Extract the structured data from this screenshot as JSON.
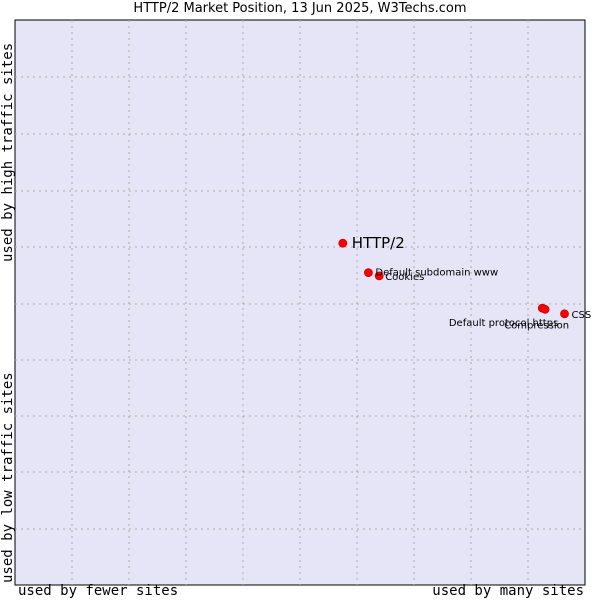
{
  "chart_data": {
    "type": "scatter",
    "title": "HTTP/2 Market Position, 13 Jun 2025, W3Techs.com",
    "ylabel_top": "used by high traffic sites",
    "ylabel_bottom": "used by low traffic sites",
    "xlabel_left": "used by fewer sites",
    "xlabel_right": "used by many sites",
    "xlim": [
      0,
      1
    ],
    "ylim": [
      0,
      1
    ],
    "grid": true,
    "colors": {
      "plot_background": "#e5e5f7",
      "grid": "#aaaaaa",
      "point": "#ff0000",
      "point_outline": "#cc0000"
    },
    "highlight": "HTTP/2",
    "points": [
      {
        "label": "HTTP/2",
        "x": 0.575,
        "y": 0.605
      },
      {
        "label": "Default subdomain www",
        "x": 0.62,
        "y": 0.553
      },
      {
        "label": "Cookies",
        "x": 0.639,
        "y": 0.547
      },
      {
        "label": "Default protocol https",
        "x": 0.925,
        "y": 0.49
      },
      {
        "label": "Compression",
        "x": 0.93,
        "y": 0.488
      },
      {
        "label": "CSS",
        "x": 0.964,
        "y": 0.48
      }
    ]
  }
}
